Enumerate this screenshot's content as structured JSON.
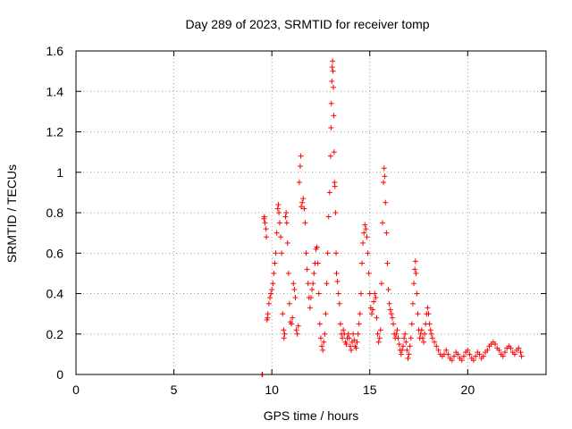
{
  "chart_data": {
    "type": "scatter",
    "title": "Day 289 of 2023, SRMTID for receiver tomp",
    "xlabel": "GPS time / hours",
    "ylabel": "SRMTID / TECUs",
    "xlim": [
      0,
      24
    ],
    "ylim": [
      0,
      1.6
    ],
    "xticks": [
      0,
      5,
      10,
      15,
      20
    ],
    "yticks": [
      0,
      0.2,
      0.4,
      0.6,
      0.8,
      1,
      1.2,
      1.4,
      1.6
    ],
    "xtick_labels": [
      "0",
      "5",
      "10",
      "15",
      "20"
    ],
    "ytick_labels": [
      "0",
      "0.2",
      "0.4",
      "0.6",
      "0.8",
      "1",
      "1.2",
      "1.4",
      "1.6"
    ],
    "grid": true,
    "marker": "plus",
    "color": "#ff0000",
    "series": [
      {
        "name": "SRMTID",
        "points": [
          [
            9.5,
            0.0
          ],
          [
            9.52,
            0.0
          ],
          [
            9.6,
            0.77
          ],
          [
            9.62,
            0.78
          ],
          [
            9.65,
            0.75
          ],
          [
            9.7,
            0.72
          ],
          [
            9.72,
            0.68
          ],
          [
            9.75,
            0.27
          ],
          [
            9.78,
            0.28
          ],
          [
            9.8,
            0.3
          ],
          [
            9.85,
            0.35
          ],
          [
            9.9,
            0.38
          ],
          [
            9.95,
            0.4
          ],
          [
            10.0,
            0.42
          ],
          [
            10.05,
            0.45
          ],
          [
            10.1,
            0.5
          ],
          [
            10.15,
            0.55
          ],
          [
            10.2,
            0.6
          ],
          [
            10.25,
            0.7
          ],
          [
            10.3,
            0.82
          ],
          [
            10.33,
            0.84
          ],
          [
            10.36,
            0.8
          ],
          [
            10.4,
            0.75
          ],
          [
            10.45,
            0.68
          ],
          [
            10.5,
            0.6
          ],
          [
            10.55,
            0.3
          ],
          [
            10.6,
            0.22
          ],
          [
            10.62,
            0.18
          ],
          [
            10.65,
            0.2
          ],
          [
            10.7,
            0.78
          ],
          [
            10.73,
            0.8
          ],
          [
            10.76,
            0.75
          ],
          [
            10.8,
            0.65
          ],
          [
            10.85,
            0.5
          ],
          [
            10.9,
            0.35
          ],
          [
            10.95,
            0.26
          ],
          [
            11.0,
            0.25
          ],
          [
            11.05,
            0.28
          ],
          [
            11.1,
            0.45
          ],
          [
            11.15,
            0.42
          ],
          [
            11.2,
            0.38
          ],
          [
            11.25,
            0.22
          ],
          [
            11.3,
            0.2
          ],
          [
            11.35,
            0.24
          ],
          [
            11.4,
            0.95
          ],
          [
            11.45,
            1.03
          ],
          [
            11.48,
            1.08
          ],
          [
            11.5,
            0.83
          ],
          [
            11.55,
            0.85
          ],
          [
            11.6,
            0.87
          ],
          [
            11.65,
            0.82
          ],
          [
            11.7,
            0.75
          ],
          [
            11.75,
            0.6
          ],
          [
            11.8,
            0.52
          ],
          [
            11.85,
            0.45
          ],
          [
            11.9,
            0.38
          ],
          [
            11.95,
            0.33
          ],
          [
            12.0,
            0.38
          ],
          [
            12.05,
            0.42
          ],
          [
            12.1,
            0.45
          ],
          [
            12.15,
            0.5
          ],
          [
            12.2,
            0.55
          ],
          [
            12.25,
            0.62
          ],
          [
            12.3,
            0.63
          ],
          [
            12.35,
            0.55
          ],
          [
            12.4,
            0.4
          ],
          [
            12.45,
            0.25
          ],
          [
            12.5,
            0.18
          ],
          [
            12.55,
            0.14
          ],
          [
            12.6,
            0.12
          ],
          [
            12.65,
            0.16
          ],
          [
            12.7,
            0.2
          ],
          [
            12.75,
            0.3
          ],
          [
            12.8,
            0.45
          ],
          [
            12.85,
            0.6
          ],
          [
            12.9,
            0.78
          ],
          [
            12.95,
            0.9
          ],
          [
            13.0,
            1.08
          ],
          [
            13.02,
            1.22
          ],
          [
            13.04,
            1.34
          ],
          [
            13.06,
            1.45
          ],
          [
            13.08,
            1.52
          ],
          [
            13.1,
            1.55
          ],
          [
            13.12,
            1.5
          ],
          [
            13.14,
            1.42
          ],
          [
            13.16,
            1.28
          ],
          [
            13.18,
            1.1
          ],
          [
            13.2,
            0.95
          ],
          [
            13.22,
            0.93
          ],
          [
            13.25,
            0.8
          ],
          [
            13.28,
            0.6
          ],
          [
            13.3,
            0.5
          ],
          [
            13.35,
            0.46
          ],
          [
            13.4,
            0.4
          ],
          [
            13.45,
            0.35
          ],
          [
            13.5,
            0.25
          ],
          [
            13.55,
            0.2
          ],
          [
            13.6,
            0.18
          ],
          [
            13.65,
            0.22
          ],
          [
            13.7,
            0.2
          ],
          [
            13.75,
            0.16
          ],
          [
            13.8,
            0.15
          ],
          [
            13.85,
            0.18
          ],
          [
            13.9,
            0.2
          ],
          [
            13.95,
            0.18
          ],
          [
            14.0,
            0.14
          ],
          [
            14.05,
            0.12
          ],
          [
            14.1,
            0.16
          ],
          [
            14.15,
            0.2
          ],
          [
            14.2,
            0.17
          ],
          [
            14.25,
            0.14
          ],
          [
            14.3,
            0.13
          ],
          [
            14.35,
            0.16
          ],
          [
            14.4,
            0.2
          ],
          [
            14.45,
            0.25
          ],
          [
            14.5,
            0.3
          ],
          [
            14.55,
            0.4
          ],
          [
            14.6,
            0.55
          ],
          [
            14.65,
            0.65
          ],
          [
            14.7,
            0.7
          ],
          [
            14.75,
            0.74
          ],
          [
            14.8,
            0.72
          ],
          [
            14.85,
            0.68
          ],
          [
            14.9,
            0.6
          ],
          [
            14.95,
            0.5
          ],
          [
            15.0,
            0.4
          ],
          [
            15.05,
            0.33
          ],
          [
            15.1,
            0.3
          ],
          [
            15.15,
            0.32
          ],
          [
            15.2,
            0.36
          ],
          [
            15.25,
            0.4
          ],
          [
            15.3,
            0.38
          ],
          [
            15.35,
            0.28
          ],
          [
            15.4,
            0.2
          ],
          [
            15.45,
            0.16
          ],
          [
            15.5,
            0.18
          ],
          [
            15.55,
            0.22
          ],
          [
            15.6,
            0.45
          ],
          [
            15.65,
            0.75
          ],
          [
            15.7,
            0.95
          ],
          [
            15.73,
            1.02
          ],
          [
            15.76,
            0.98
          ],
          [
            15.8,
            0.85
          ],
          [
            15.85,
            0.7
          ],
          [
            15.9,
            0.55
          ],
          [
            15.95,
            0.42
          ],
          [
            16.0,
            0.35
          ],
          [
            16.05,
            0.32
          ],
          [
            16.1,
            0.3
          ],
          [
            16.15,
            0.28
          ],
          [
            16.2,
            0.25
          ],
          [
            16.25,
            0.2
          ],
          [
            16.3,
            0.18
          ],
          [
            16.35,
            0.2
          ],
          [
            16.4,
            0.22
          ],
          [
            16.45,
            0.18
          ],
          [
            16.5,
            0.15
          ],
          [
            16.55,
            0.12
          ],
          [
            16.6,
            0.1
          ],
          [
            16.65,
            0.12
          ],
          [
            16.7,
            0.14
          ],
          [
            16.75,
            0.18
          ],
          [
            16.8,
            0.2
          ],
          [
            16.85,
            0.16
          ],
          [
            16.9,
            0.12
          ],
          [
            16.95,
            0.08
          ],
          [
            17.0,
            0.1
          ],
          [
            17.05,
            0.14
          ],
          [
            17.1,
            0.18
          ],
          [
            17.15,
            0.25
          ],
          [
            17.2,
            0.35
          ],
          [
            17.25,
            0.45
          ],
          [
            17.3,
            0.52
          ],
          [
            17.33,
            0.56
          ],
          [
            17.36,
            0.5
          ],
          [
            17.4,
            0.4
          ],
          [
            17.45,
            0.3
          ],
          [
            17.5,
            0.22
          ],
          [
            17.55,
            0.18
          ],
          [
            17.6,
            0.2
          ],
          [
            17.65,
            0.22
          ],
          [
            17.7,
            0.18
          ],
          [
            17.75,
            0.16
          ],
          [
            17.8,
            0.2
          ],
          [
            17.85,
            0.25
          ],
          [
            17.9,
            0.3
          ],
          [
            17.95,
            0.33
          ],
          [
            18.0,
            0.3
          ],
          [
            18.05,
            0.25
          ],
          [
            18.1,
            0.22
          ],
          [
            18.15,
            0.2
          ],
          [
            18.2,
            0.18
          ],
          [
            18.3,
            0.16
          ],
          [
            18.4,
            0.14
          ],
          [
            18.5,
            0.12
          ],
          [
            18.6,
            0.1
          ],
          [
            18.7,
            0.09
          ],
          [
            18.8,
            0.1
          ],
          [
            18.9,
            0.12
          ],
          [
            19.0,
            0.1
          ],
          [
            19.1,
            0.08
          ],
          [
            19.2,
            0.07
          ],
          [
            19.3,
            0.09
          ],
          [
            19.4,
            0.11
          ],
          [
            19.5,
            0.1
          ],
          [
            19.6,
            0.08
          ],
          [
            19.7,
            0.07
          ],
          [
            19.8,
            0.09
          ],
          [
            19.9,
            0.11
          ],
          [
            20.0,
            0.12
          ],
          [
            20.1,
            0.1
          ],
          [
            20.2,
            0.08
          ],
          [
            20.3,
            0.07
          ],
          [
            20.4,
            0.09
          ],
          [
            20.5,
            0.11
          ],
          [
            20.6,
            0.1
          ],
          [
            20.7,
            0.08
          ],
          [
            20.8,
            0.09
          ],
          [
            20.9,
            0.11
          ],
          [
            21.0,
            0.12
          ],
          [
            21.1,
            0.14
          ],
          [
            21.2,
            0.15
          ],
          [
            21.3,
            0.16
          ],
          [
            21.4,
            0.15
          ],
          [
            21.5,
            0.13
          ],
          [
            21.6,
            0.12
          ],
          [
            21.7,
            0.1
          ],
          [
            21.8,
            0.09
          ],
          [
            21.9,
            0.11
          ],
          [
            22.0,
            0.13
          ],
          [
            22.1,
            0.14
          ],
          [
            22.2,
            0.13
          ],
          [
            22.3,
            0.11
          ],
          [
            22.4,
            0.1
          ],
          [
            22.5,
            0.12
          ],
          [
            22.6,
            0.13
          ],
          [
            22.7,
            0.11
          ],
          [
            22.75,
            0.09
          ]
        ]
      }
    ]
  }
}
